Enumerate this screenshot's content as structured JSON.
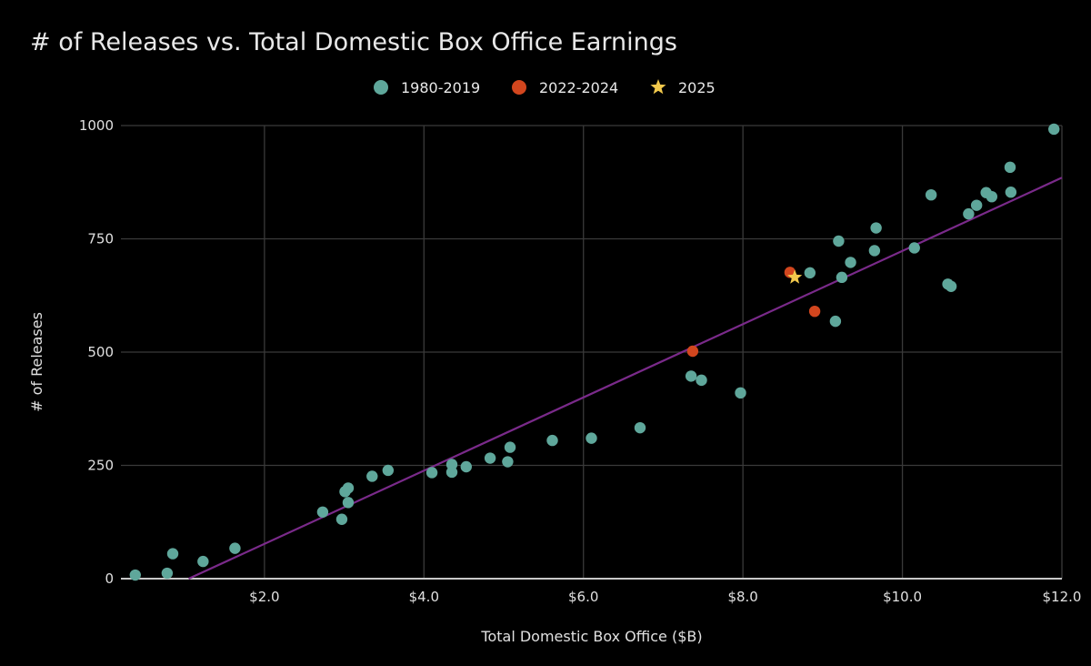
{
  "chart_data": {
    "type": "scatter",
    "title": "# of Releases vs. Total Domestic Box Office Earnings",
    "xlabel": "Total Domestic Box Office ($B)",
    "ylabel": "# of Releases",
    "xlim": [
      0.2,
      12.0
    ],
    "ylim": [
      0,
      1000
    ],
    "x_ticks": [
      2,
      4,
      6,
      8,
      10,
      12
    ],
    "x_tick_labels": [
      "$2.0",
      "$4.0",
      "$6.0",
      "$8.0",
      "$10.0",
      "$12.0"
    ],
    "y_ticks": [
      0,
      250,
      500,
      750,
      1000
    ],
    "y_tick_labels": [
      "0",
      "250",
      "500",
      "750",
      "1000"
    ],
    "grid": true,
    "legend_position": "top-center",
    "series": [
      {
        "name": "1980-2019",
        "marker": "circle",
        "color": "#5fa79b",
        "points": [
          [
            0.38,
            8
          ],
          [
            0.78,
            12
          ],
          [
            0.85,
            55
          ],
          [
            1.23,
            38
          ],
          [
            1.63,
            67
          ],
          [
            2.73,
            147
          ],
          [
            2.97,
            131
          ],
          [
            3.01,
            192
          ],
          [
            3.05,
            200
          ],
          [
            3.05,
            168
          ],
          [
            3.35,
            226
          ],
          [
            3.55,
            239
          ],
          [
            4.1,
            234
          ],
          [
            4.35,
            252
          ],
          [
            4.35,
            235
          ],
          [
            4.53,
            247
          ],
          [
            4.83,
            266
          ],
          [
            5.05,
            258
          ],
          [
            5.08,
            290
          ],
          [
            5.61,
            305
          ],
          [
            6.1,
            310
          ],
          [
            6.71,
            333
          ],
          [
            7.35,
            447
          ],
          [
            7.48,
            438
          ],
          [
            7.97,
            410
          ],
          [
            8.84,
            675
          ],
          [
            9.16,
            568
          ],
          [
            9.2,
            745
          ],
          [
            9.24,
            665
          ],
          [
            9.35,
            698
          ],
          [
            9.65,
            724
          ],
          [
            9.67,
            774
          ],
          [
            10.15,
            730
          ],
          [
            10.36,
            847
          ],
          [
            10.57,
            650
          ],
          [
            10.61,
            645
          ],
          [
            10.83,
            805
          ],
          [
            10.93,
            824
          ],
          [
            11.05,
            852
          ],
          [
            11.12,
            843
          ],
          [
            11.35,
            908
          ],
          [
            11.36,
            853
          ],
          [
            11.9,
            992
          ]
        ]
      },
      {
        "name": "2022-2024",
        "marker": "circle",
        "color": "#d2461e",
        "points": [
          [
            7.37,
            502
          ],
          [
            8.59,
            676
          ],
          [
            8.9,
            590
          ]
        ]
      },
      {
        "name": "2025",
        "marker": "star",
        "color": "#f2c94c",
        "points": [
          [
            8.65,
            665
          ]
        ]
      }
    ],
    "trendline": {
      "color": "#7a2a8a",
      "points": [
        [
          1.05,
          0
        ],
        [
          12.0,
          885
        ]
      ]
    }
  }
}
